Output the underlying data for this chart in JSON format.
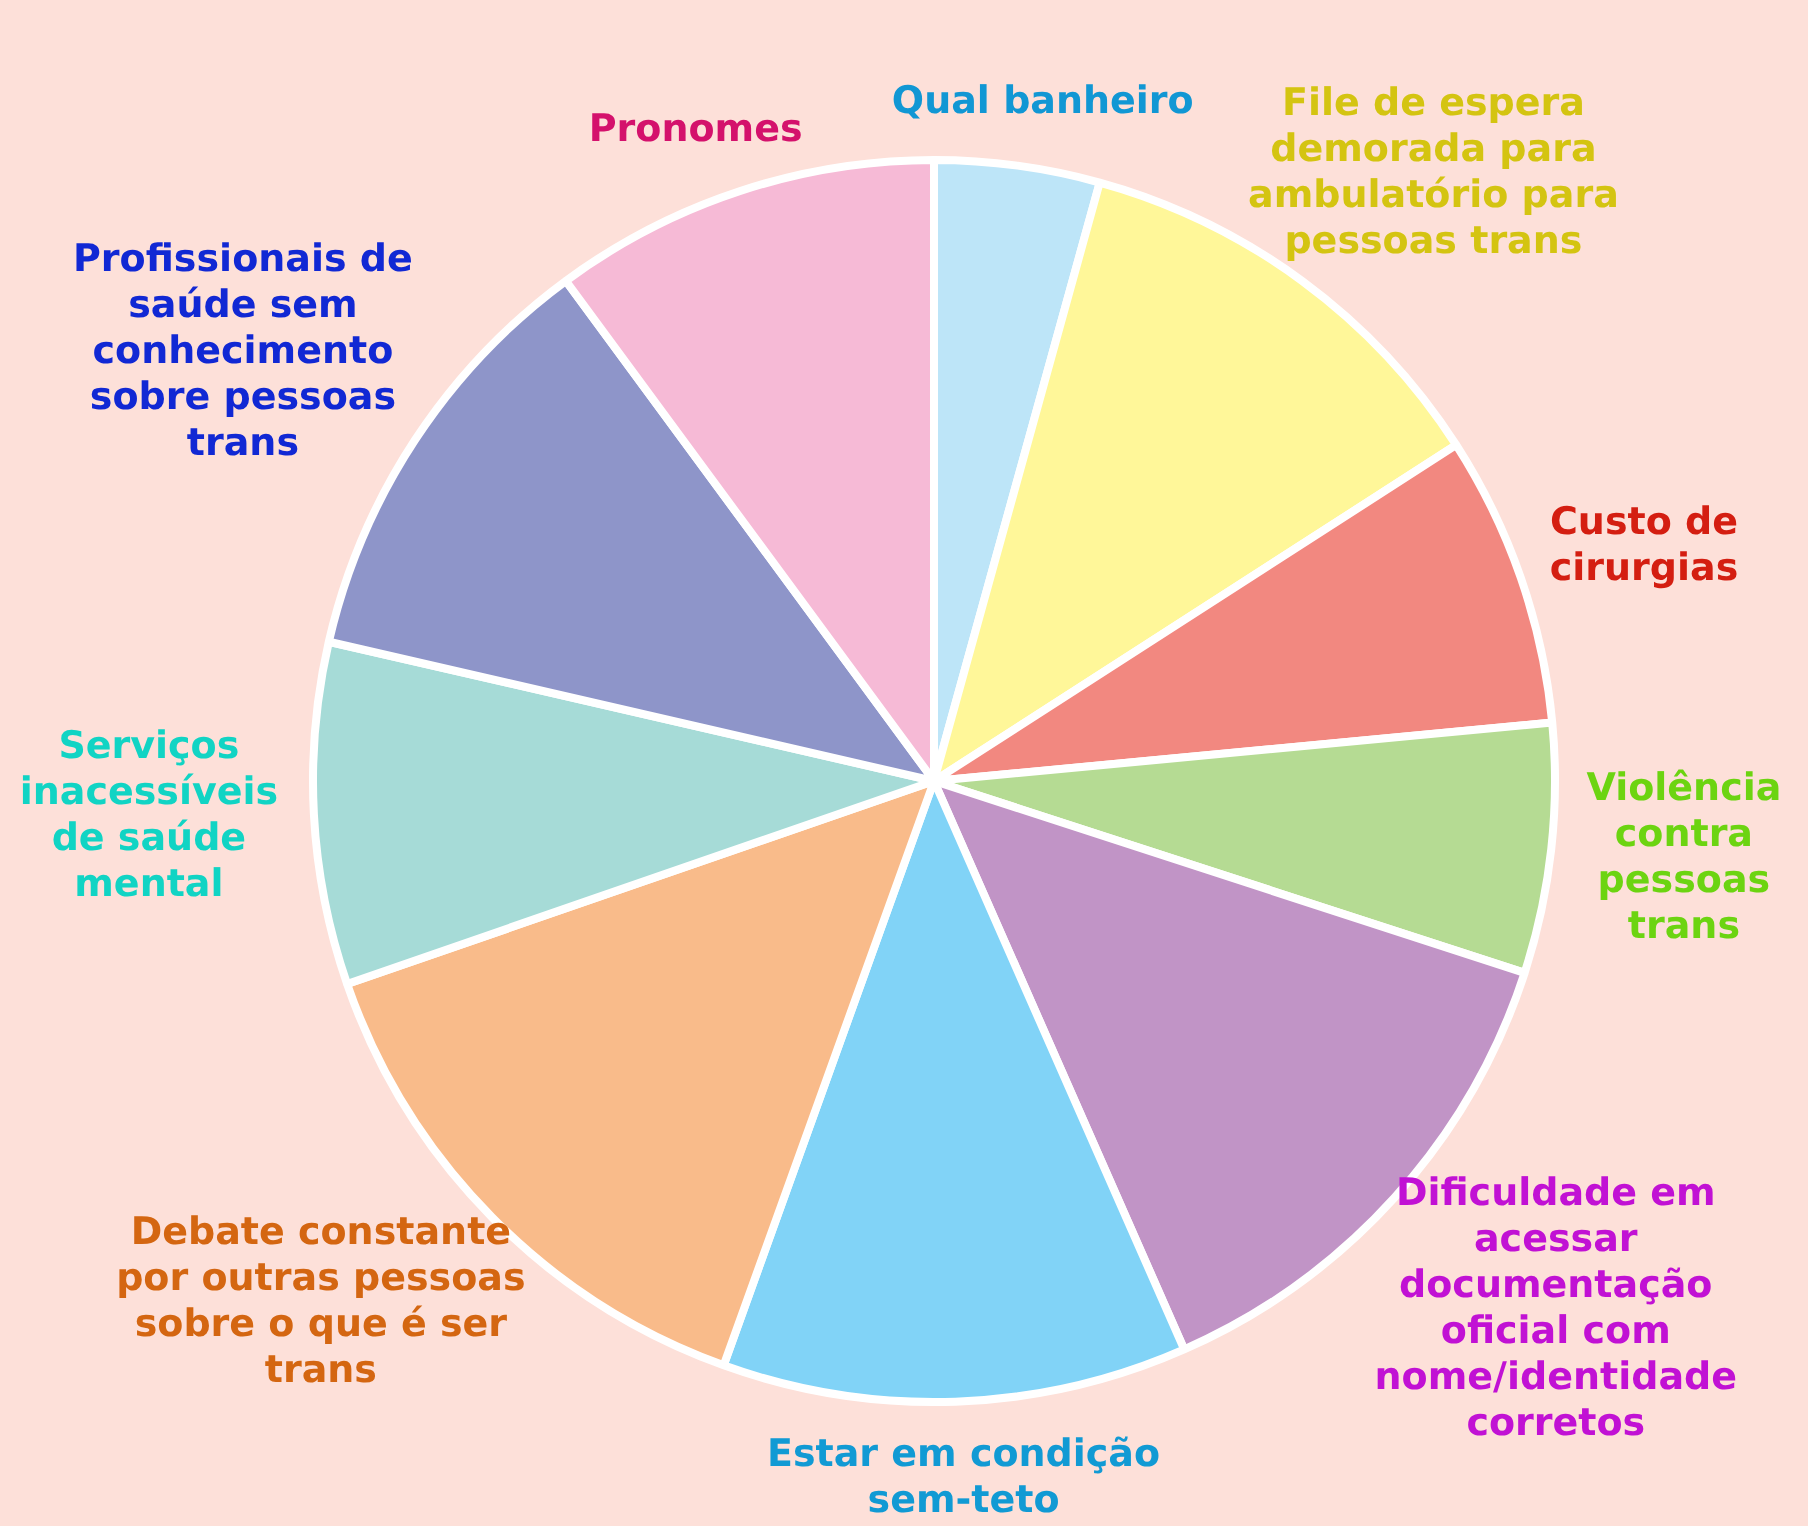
{
  "chart_data": {
    "type": "pie",
    "categories": [
      "Qual banheiro",
      "File de espera demorada para ambulatório para pessoas trans",
      "Custo de cirurgias",
      "Violência contra pessoas trans",
      "Dificuldade em acessar documentação oficial com nome/identidade corretos",
      "Estar em condição sem-teto",
      "Debate constante por outras pessoas sobre o que é ser trans",
      "Serviços inacessíveis de saúde mental",
      "Profissionais de saúde sem conhecimento sobre pessoas trans",
      "Pronomes"
    ],
    "values": [
      4.3,
      11.6,
      7.6,
      6.5,
      13.4,
      12.1,
      14.2,
      8.9,
      11.3,
      10.1
    ],
    "colors": [
      "#bde5f8",
      "#fff799",
      "#f28880",
      "#b5db93",
      "#c194c6",
      "#81d3f7",
      "#f9bb8a",
      "#a6dbd7",
      "#8e95c9",
      "#f6bad6"
    ],
    "legend": false
  }
}
